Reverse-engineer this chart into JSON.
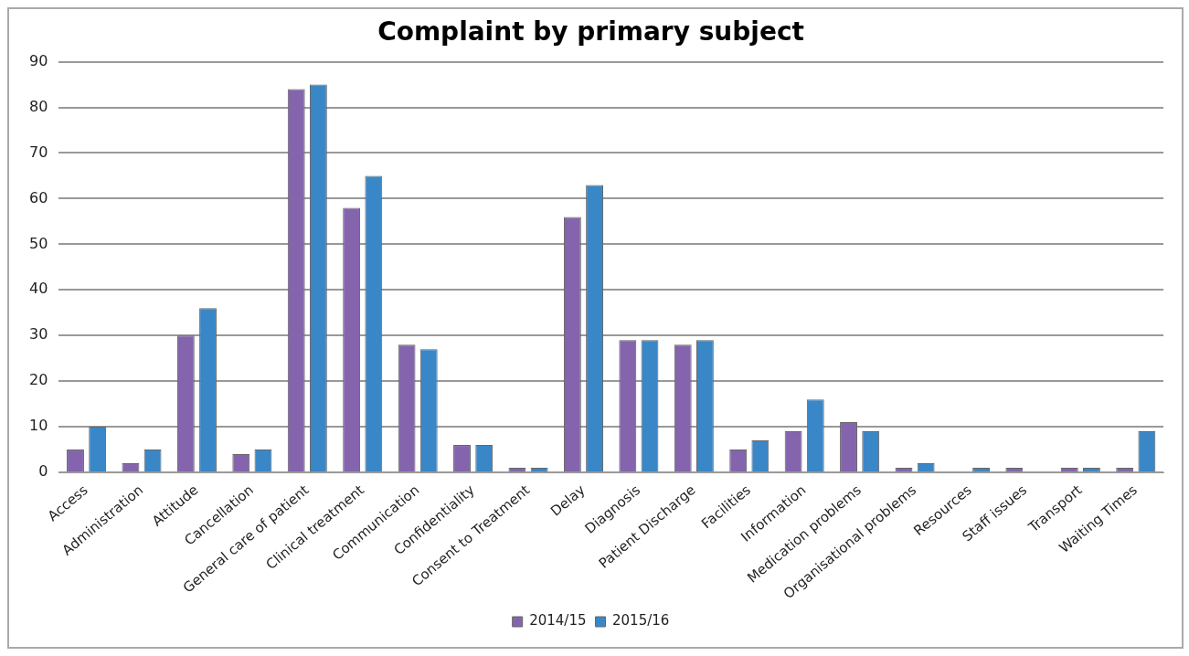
{
  "chart_data": {
    "type": "bar",
    "title": "Complaint by primary subject",
    "categories": [
      "Access",
      "Administration",
      "Attitude",
      "Cancellation",
      "General care of patient",
      "Clinical treatment",
      "Communication",
      "Confidentiality",
      "Consent to Treatment",
      "Delay",
      "Diagnosis",
      "Patient Discharge",
      "Facilities",
      "Information",
      "Medication problems",
      "Organisational problems",
      "Resources",
      "Staff issues",
      "Transport",
      "Waiting Times"
    ],
    "series": [
      {
        "name": "2014/15",
        "color": "#8465ad",
        "values": [
          5,
          2,
          30,
          4,
          84,
          58,
          28,
          6,
          1,
          56,
          29,
          28,
          5,
          9,
          11,
          1,
          0,
          1,
          1,
          1
        ]
      },
      {
        "name": "2015/16",
        "color": "#3a87c8",
        "values": [
          10,
          5,
          36,
          5,
          85,
          65,
          27,
          6,
          1,
          63,
          29,
          29,
          7,
          16,
          9,
          2,
          1,
          0,
          1,
          9
        ]
      }
    ],
    "ylim": [
      0,
      90
    ],
    "yticks": [
      0,
      10,
      20,
      30,
      40,
      50,
      60,
      70,
      80,
      90
    ],
    "grid": "y",
    "legend": "bottom"
  }
}
